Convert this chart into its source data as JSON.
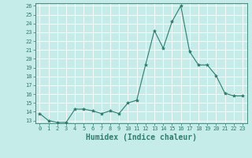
{
  "x": [
    0,
    1,
    2,
    3,
    4,
    5,
    6,
    7,
    8,
    9,
    10,
    11,
    12,
    13,
    14,
    15,
    16,
    17,
    18,
    19,
    20,
    21,
    22,
    23
  ],
  "y": [
    13.8,
    13.0,
    12.8,
    12.8,
    14.3,
    14.3,
    14.1,
    13.8,
    14.1,
    13.8,
    15.0,
    15.3,
    19.3,
    23.2,
    21.2,
    24.2,
    26.0,
    20.8,
    19.3,
    19.3,
    18.1,
    16.1,
    15.8,
    15.8
  ],
  "xlabel": "Humidex (Indice chaleur)",
  "ylim_min": 13,
  "ylim_max": 26,
  "xlim_min": -0.5,
  "xlim_max": 23.5,
  "bg_color": "#c5ece8",
  "grid_color": "#ffffff",
  "line_color": "#2e7d6e",
  "marker_color": "#2e7d6e",
  "tick_color": "#2e7d6e",
  "label_color": "#2e7d6e",
  "xlabel_fontsize": 7,
  "tick_fontsize": 5,
  "yticks": [
    13,
    14,
    15,
    16,
    17,
    18,
    19,
    20,
    21,
    22,
    23,
    24,
    25,
    26
  ],
  "xticks": [
    0,
    1,
    2,
    3,
    4,
    5,
    6,
    7,
    8,
    9,
    10,
    11,
    12,
    13,
    14,
    15,
    16,
    17,
    18,
    19,
    20,
    21,
    22,
    23
  ]
}
